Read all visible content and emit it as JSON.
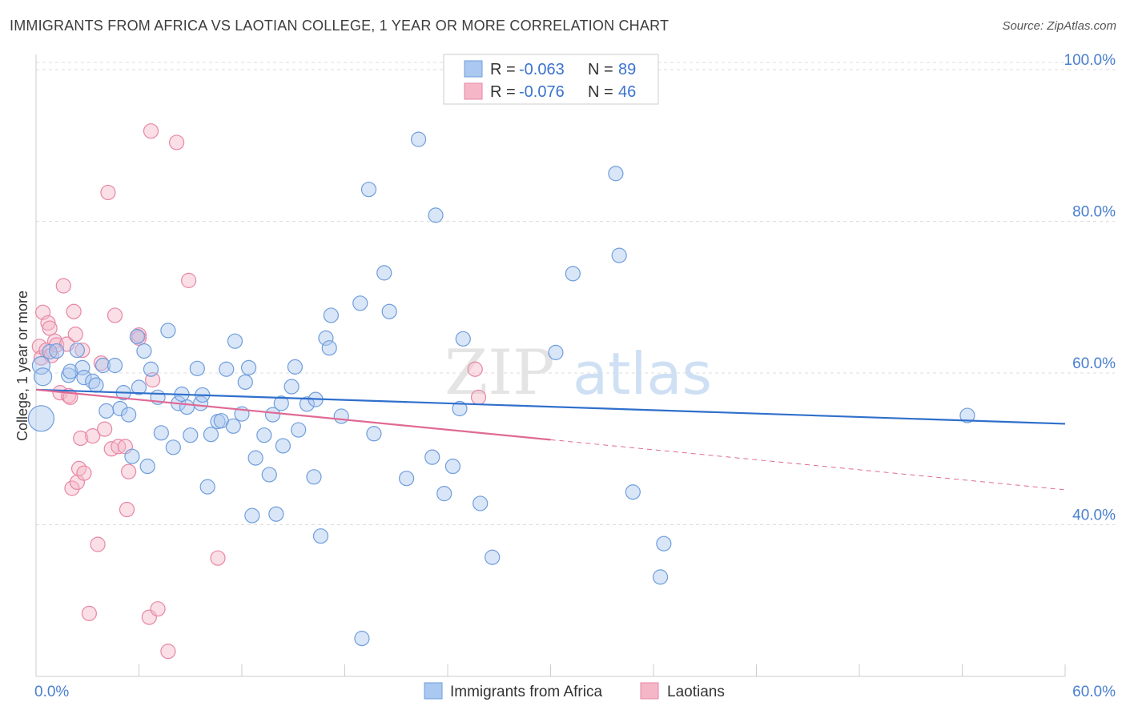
{
  "header": {
    "title": "IMMIGRANTS FROM AFRICA VS LAOTIAN COLLEGE, 1 YEAR OR MORE CORRELATION CHART",
    "source": "Source: ZipAtlas.com"
  },
  "colors": {
    "blue_fill": "#aac8f0",
    "blue_stroke": "#6f9ddc",
    "blue_line": "#2f6fcc",
    "pink_fill": "#f5b7c8",
    "pink_stroke": "#e886a5",
    "pink_line": "#e06a95",
    "grid": "#dddddd",
    "tick_text": "#4a7fcf"
  },
  "legend": {
    "rows": [
      {
        "r_label": "R = ",
        "r_value": "-0.063",
        "n_label": "N = ",
        "n_value": "89"
      },
      {
        "r_label": "R = ",
        "r_value": "-0.076",
        "n_label": "N = ",
        "n_value": "46"
      }
    ]
  },
  "bottom_legend": {
    "items": [
      "Immigrants from Africa",
      "Laotians"
    ]
  },
  "watermark": {
    "part1": "ZIP",
    "part2": "atlas"
  },
  "chart_data": {
    "type": "scatter",
    "title": "IMMIGRANTS FROM AFRICA VS LAOTIAN COLLEGE, 1 YEAR OR MORE CORRELATION CHART",
    "xlabel": "",
    "ylabel": "College, 1 year or more",
    "xlim": [
      0,
      60
    ],
    "ylim": [
      20,
      102
    ],
    "x_tick_labels": [
      "0.0%",
      "60.0%"
    ],
    "y_ticks": [
      40,
      60,
      80,
      100
    ],
    "y_tick_labels": [
      "40.0%",
      "60.0%",
      "80.0%",
      "100.0%"
    ],
    "grid": true,
    "legend_position": "top-center",
    "series": [
      {
        "name": "Immigrants from Africa",
        "R": -0.063,
        "N": 89,
        "trend": {
          "x": [
            0,
            60
          ],
          "y": [
            57.8,
            53.3
          ],
          "dashed_from_x": null
        },
        "points": [
          [
            0.3,
            54.0,
            16
          ],
          [
            0.3,
            61.0,
            11
          ],
          [
            0.4,
            59.5,
            11
          ],
          [
            0.8,
            62.8,
            9
          ],
          [
            1.2,
            62.9,
            9
          ],
          [
            1.9,
            59.7,
            9
          ],
          [
            2.0,
            60.2,
            9
          ],
          [
            2.4,
            63.0,
            9
          ],
          [
            2.7,
            60.7,
            9
          ],
          [
            2.8,
            59.4,
            9
          ],
          [
            3.3,
            58.9,
            9
          ],
          [
            3.5,
            58.4,
            9
          ],
          [
            3.9,
            61.0,
            9
          ],
          [
            4.1,
            55.0,
            9
          ],
          [
            4.6,
            61.0,
            9
          ],
          [
            4.9,
            55.3,
            9
          ],
          [
            5.1,
            57.4,
            9
          ],
          [
            5.4,
            54.5,
            9
          ],
          [
            5.6,
            49.0,
            9
          ],
          [
            5.9,
            64.8,
            9
          ],
          [
            6.0,
            58.1,
            9
          ],
          [
            6.3,
            62.9,
            9
          ],
          [
            6.5,
            47.7,
            9
          ],
          [
            6.7,
            60.5,
            9
          ],
          [
            7.1,
            56.8,
            9
          ],
          [
            7.3,
            52.1,
            9
          ],
          [
            7.7,
            65.6,
            9
          ],
          [
            8.0,
            50.2,
            9
          ],
          [
            8.3,
            56.0,
            9
          ],
          [
            8.5,
            57.2,
            9
          ],
          [
            8.8,
            55.5,
            9
          ],
          [
            9.0,
            51.8,
            9
          ],
          [
            9.4,
            60.6,
            9
          ],
          [
            9.6,
            56.0,
            9
          ],
          [
            9.7,
            57.1,
            9
          ],
          [
            10.0,
            45.0,
            9
          ],
          [
            10.2,
            51.9,
            9
          ],
          [
            10.6,
            53.6,
            9
          ],
          [
            10.8,
            53.7,
            9
          ],
          [
            11.1,
            60.5,
            9
          ],
          [
            11.5,
            53.0,
            9
          ],
          [
            11.6,
            64.2,
            9
          ],
          [
            12.0,
            54.6,
            9
          ],
          [
            12.2,
            58.8,
            9
          ],
          [
            12.4,
            60.7,
            9
          ],
          [
            12.6,
            41.2,
            9
          ],
          [
            12.8,
            48.8,
            9
          ],
          [
            13.3,
            51.8,
            9
          ],
          [
            13.6,
            46.6,
            9
          ],
          [
            13.8,
            54.5,
            9
          ],
          [
            14.0,
            41.4,
            9
          ],
          [
            14.3,
            56.0,
            9
          ],
          [
            14.4,
            50.4,
            9
          ],
          [
            14.9,
            58.2,
            9
          ],
          [
            15.1,
            60.8,
            9
          ],
          [
            15.3,
            52.5,
            9
          ],
          [
            15.8,
            55.9,
            9
          ],
          [
            16.2,
            46.3,
            9
          ],
          [
            16.3,
            56.5,
            9
          ],
          [
            16.6,
            38.5,
            9
          ],
          [
            16.9,
            64.6,
            9
          ],
          [
            17.1,
            63.3,
            9
          ],
          [
            17.2,
            67.6,
            9
          ],
          [
            17.8,
            54.3,
            9
          ],
          [
            18.9,
            69.2,
            9
          ],
          [
            19.0,
            25.0,
            9
          ],
          [
            19.4,
            84.2,
            9
          ],
          [
            19.7,
            52.0,
            9
          ],
          [
            20.3,
            73.2,
            9
          ],
          [
            20.6,
            68.1,
            9
          ],
          [
            21.6,
            46.1,
            9
          ],
          [
            22.3,
            90.8,
            9
          ],
          [
            23.1,
            48.9,
            9
          ],
          [
            23.3,
            80.8,
            9
          ],
          [
            23.8,
            44.1,
            9
          ],
          [
            24.3,
            47.7,
            9
          ],
          [
            24.7,
            55.3,
            9
          ],
          [
            24.9,
            64.5,
            9
          ],
          [
            25.9,
            42.8,
            9
          ],
          [
            26.6,
            35.7,
            9
          ],
          [
            30.3,
            62.7,
            9
          ],
          [
            31.3,
            73.1,
            9
          ],
          [
            33.8,
            86.3,
            9
          ],
          [
            34.0,
            75.5,
            9
          ],
          [
            34.8,
            44.3,
            9
          ],
          [
            36.4,
            33.1,
            9
          ],
          [
            36.6,
            37.5,
            9
          ],
          [
            54.3,
            54.4,
            9
          ]
        ]
      },
      {
        "name": "Laotians",
        "R": -0.076,
        "N": 46,
        "trend": {
          "x": [
            0,
            60
          ],
          "y": [
            57.8,
            44.6
          ],
          "dashed_from_x": 30
        },
        "points": [
          [
            0.2,
            63.5,
            9
          ],
          [
            0.3,
            62.0,
            9
          ],
          [
            0.4,
            68.0,
            9
          ],
          [
            0.6,
            63.0,
            9
          ],
          [
            0.7,
            66.6,
            9
          ],
          [
            0.8,
            65.9,
            9
          ],
          [
            0.9,
            62.3,
            9
          ],
          [
            1.1,
            64.2,
            9
          ],
          [
            1.2,
            63.7,
            9
          ],
          [
            1.4,
            57.4,
            9
          ],
          [
            1.6,
            71.5,
            9
          ],
          [
            1.8,
            63.8,
            9
          ],
          [
            1.9,
            57.0,
            9
          ],
          [
            2.0,
            56.8,
            9
          ],
          [
            2.1,
            44.8,
            9
          ],
          [
            2.2,
            68.1,
            9
          ],
          [
            2.3,
            65.1,
            9
          ],
          [
            2.4,
            45.6,
            9
          ],
          [
            2.5,
            47.4,
            9
          ],
          [
            2.6,
            51.4,
            9
          ],
          [
            2.7,
            63.0,
            9
          ],
          [
            2.8,
            46.8,
            9
          ],
          [
            3.1,
            28.3,
            9
          ],
          [
            3.3,
            51.7,
            9
          ],
          [
            3.6,
            37.4,
            9
          ],
          [
            3.8,
            61.3,
            9
          ],
          [
            4.0,
            52.6,
            9
          ],
          [
            4.2,
            83.8,
            9
          ],
          [
            4.4,
            50.0,
            9
          ],
          [
            4.6,
            67.6,
            9
          ],
          [
            4.8,
            50.3,
            9
          ],
          [
            5.2,
            50.3,
            9
          ],
          [
            5.3,
            42.0,
            9
          ],
          [
            5.4,
            47.0,
            9
          ],
          [
            6.0,
            65.0,
            9
          ],
          [
            6.6,
            27.8,
            9
          ],
          [
            6.7,
            91.9,
            9
          ],
          [
            6.8,
            59.1,
            9
          ],
          [
            7.1,
            28.9,
            9
          ],
          [
            7.7,
            23.3,
            9
          ],
          [
            8.2,
            90.4,
            9
          ],
          [
            8.9,
            72.2,
            9
          ],
          [
            10.6,
            35.6,
            9
          ],
          [
            25.6,
            60.5,
            9
          ],
          [
            25.8,
            56.8,
            9
          ],
          [
            6.0,
            64.6,
            9
          ]
        ]
      }
    ]
  }
}
